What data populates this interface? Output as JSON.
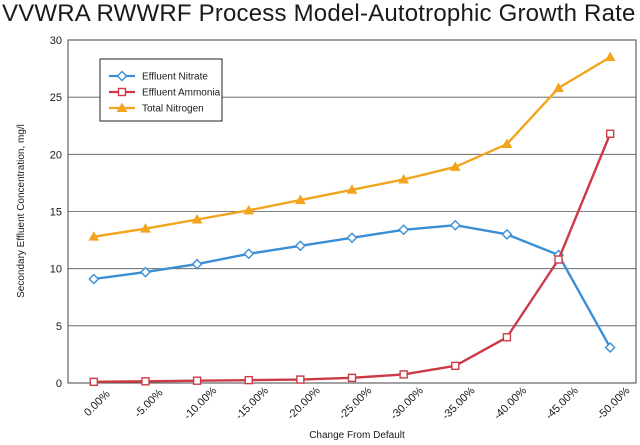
{
  "chart_data": {
    "type": "line",
    "title": "VVWRA RWWRF Process Model-Autotrophic Growth Rate",
    "xlabel": "Change From Default",
    "ylabel": "Secondary Effluent Concentration, mg/l",
    "categories": [
      "0.00%",
      "-5.00%",
      "-10.00%",
      "-15.00%",
      "-20.00%",
      "-25.00%",
      "-30.00%",
      "-35.00%",
      "-40.00%",
      "-45.00%",
      "-50.00%"
    ],
    "yticks": [
      "0",
      "5",
      "10",
      "15",
      "20",
      "25",
      "30"
    ],
    "ylim": [
      0,
      30
    ],
    "grid": true,
    "legend_position": "top-left",
    "series": [
      {
        "name": "Effluent Nitrate",
        "color": "#3a8fd6",
        "marker": "diamond",
        "values": [
          9.1,
          9.7,
          10.4,
          11.3,
          12.0,
          12.7,
          13.4,
          13.8,
          13.0,
          11.2,
          3.1
        ]
      },
      {
        "name": "Effluent Ammonia",
        "color": "#cc3b45",
        "marker": "square",
        "values": [
          0.1,
          0.15,
          0.2,
          0.25,
          0.3,
          0.45,
          0.75,
          1.5,
          4.0,
          10.8,
          21.8
        ]
      },
      {
        "name": "Total Nitrogen",
        "color": "#f2a41c",
        "marker": "triangle",
        "values": [
          12.8,
          13.5,
          14.3,
          15.1,
          16.0,
          16.9,
          17.8,
          18.9,
          20.9,
          25.8,
          28.5
        ]
      }
    ]
  }
}
